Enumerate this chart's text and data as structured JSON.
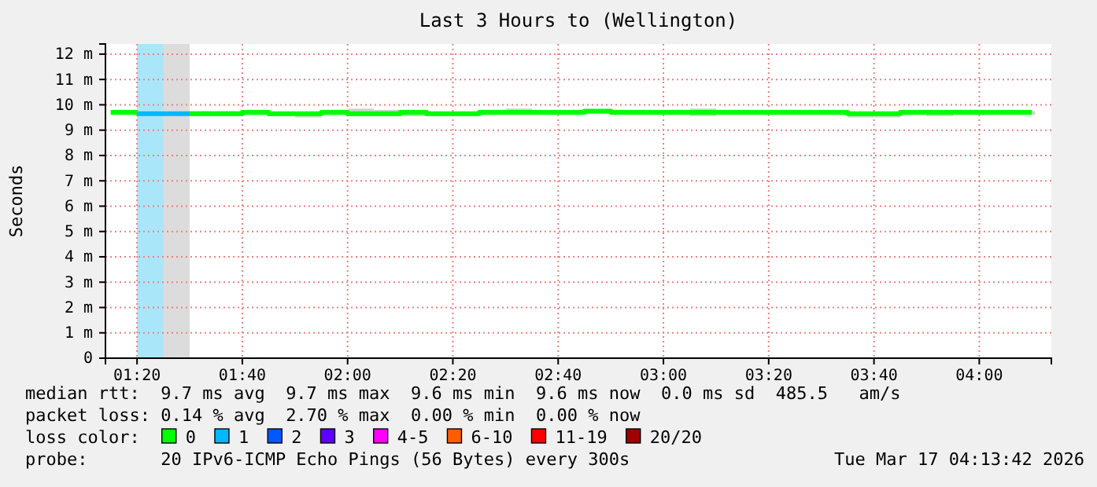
{
  "chart_data": {
    "type": "step",
    "title": "Last 3 Hours to (Wellington)",
    "ylabel": "Seconds",
    "xlim": [
      1.2333,
      4.2283
    ],
    "xticks": [
      {
        "value": 1.3333,
        "label": "01:20"
      },
      {
        "value": 1.6667,
        "label": "01:40"
      },
      {
        "value": 2,
        "label": "02:00"
      },
      {
        "value": 2.3333,
        "label": "02:20"
      },
      {
        "value": 2.6667,
        "label": "02:40"
      },
      {
        "value": 3,
        "label": "03:00"
      },
      {
        "value": 3.3333,
        "label": "03:20"
      },
      {
        "value": 3.6667,
        "label": "03:40"
      },
      {
        "value": 4,
        "label": "04:00"
      }
    ],
    "ylim": [
      0,
      12.4
    ],
    "yticks": [
      {
        "value": 0,
        "label": "0"
      },
      {
        "value": 1,
        "label": "1 m"
      },
      {
        "value": 2,
        "label": "2 m"
      },
      {
        "value": 3,
        "label": "3 m"
      },
      {
        "value": 4,
        "label": "4 m"
      },
      {
        "value": 5,
        "label": "5 m"
      },
      {
        "value": 6,
        "label": "6 m"
      },
      {
        "value": 7,
        "label": "7 m"
      },
      {
        "value": 8,
        "label": "8 m"
      },
      {
        "value": 9,
        "label": "9 m"
      },
      {
        "value": 10,
        "label": "10 m"
      },
      {
        "value": 11,
        "label": "11 m"
      },
      {
        "value": 12,
        "label": "12 m"
      }
    ],
    "x": [
      1.25,
      1.3333,
      1.4167,
      1.5,
      1.5833,
      1.6667,
      1.75,
      1.8333,
      1.9167,
      2,
      2.0833,
      2.1667,
      2.25,
      2.3333,
      2.4167,
      2.5,
      2.5833,
      2.6667,
      2.75,
      2.8333,
      2.9167,
      3,
      3.0833,
      3.1667,
      3.25,
      3.3333,
      3.4167,
      3.5,
      3.5833,
      3.6667,
      3.75,
      3.8333,
      3.9167,
      4,
      4.0833,
      4.1667
    ],
    "series": [
      {
        "name": "0",
        "color": "#00ff00",
        "values": [
          9.7,
          9.7,
          null,
          9.65,
          9.65,
          9.7,
          9.65,
          9.65,
          9.7,
          9.65,
          9.65,
          9.7,
          9.65,
          9.65,
          9.7,
          9.7,
          9.7,
          9.7,
          9.75,
          9.7,
          9.7,
          9.7,
          9.7,
          9.7,
          9.7,
          9.7,
          9.7,
          9.7,
          9.65,
          9.65,
          9.7,
          9.7,
          9.7,
          9.7,
          9.7,
          9.7
        ],
        "lower": [
          9.6,
          null,
          null,
          9.55,
          9.55,
          9.6,
          9.55,
          9.5,
          9.6,
          9.55,
          9.55,
          9.55,
          9.55,
          9.55,
          9.6,
          9.6,
          9.6,
          9.6,
          9.65,
          9.6,
          9.6,
          9.6,
          9.55,
          9.6,
          9.6,
          9.6,
          9.6,
          9.6,
          9.5,
          9.5,
          9.6,
          9.55,
          9.6,
          9.6,
          9.6,
          9.6
        ],
        "upper": [
          9.8,
          null,
          null,
          9.75,
          9.75,
          9.75,
          9.7,
          9.7,
          9.8,
          9.85,
          9.8,
          9.75,
          9.7,
          9.7,
          9.8,
          9.85,
          9.75,
          9.75,
          9.8,
          9.75,
          9.75,
          9.8,
          9.85,
          9.75,
          9.75,
          9.8,
          9.75,
          9.75,
          9.7,
          9.7,
          9.75,
          9.75,
          9.8,
          9.75,
          9.75,
          9.75
        ]
      },
      {
        "name": "1",
        "color": "#00b8ff",
        "values": [
          null,
          9.65,
          9.65,
          9.65,
          null,
          null,
          null,
          null,
          null,
          null,
          null,
          null,
          null,
          null,
          null,
          null,
          null,
          null,
          null,
          null,
          null,
          null,
          null,
          null,
          null,
          null,
          null,
          null,
          null,
          null,
          null,
          null,
          null,
          null,
          null,
          null
        ]
      },
      {
        "name": "2",
        "color": "#0059ff",
        "values": [
          null,
          null,
          null,
          null,
          null,
          null,
          null,
          null,
          null,
          null,
          null,
          null,
          null,
          null,
          null,
          null,
          null,
          null,
          null,
          null,
          null,
          null,
          null,
          null,
          null,
          null,
          null,
          null,
          null,
          null,
          null,
          null,
          null,
          null,
          null,
          null
        ]
      },
      {
        "name": "3",
        "color": "#5e00ff",
        "values": [
          null,
          null,
          null,
          null,
          null,
          null,
          null,
          null,
          null,
          null,
          null,
          null,
          null,
          null,
          null,
          null,
          null,
          null,
          null,
          null,
          null,
          null,
          null,
          null,
          null,
          null,
          null,
          null,
          null,
          null,
          null,
          null,
          null,
          null,
          null,
          null
        ]
      },
      {
        "name": "4-5",
        "color": "#ff00ff",
        "values": [
          null,
          null,
          null,
          null,
          null,
          null,
          null,
          null,
          null,
          null,
          null,
          null,
          null,
          null,
          null,
          null,
          null,
          null,
          null,
          null,
          null,
          null,
          null,
          null,
          null,
          null,
          null,
          null,
          null,
          null,
          null,
          null,
          null,
          null,
          null,
          null
        ]
      },
      {
        "name": "6-10",
        "color": "#ff5e00",
        "values": [
          null,
          null,
          null,
          null,
          null,
          null,
          null,
          null,
          null,
          null,
          null,
          null,
          null,
          null,
          null,
          null,
          null,
          null,
          null,
          null,
          null,
          null,
          null,
          null,
          null,
          null,
          null,
          null,
          null,
          null,
          null,
          null,
          null,
          null,
          null,
          null
        ]
      },
      {
        "name": "11-19",
        "color": "#ff0000",
        "values": [
          null,
          null,
          null,
          null,
          null,
          null,
          null,
          null,
          null,
          null,
          null,
          null,
          null,
          null,
          null,
          null,
          null,
          null,
          null,
          null,
          null,
          null,
          null,
          null,
          null,
          null,
          null,
          null,
          null,
          null,
          null,
          null,
          null,
          null,
          null,
          null
        ]
      },
      {
        "name": "20/20",
        "color": "#a10000",
        "values": [
          null,
          null,
          null,
          null,
          null,
          null,
          null,
          null,
          null,
          null,
          null,
          null,
          null,
          null,
          null,
          null,
          null,
          null,
          null,
          null,
          null,
          null,
          null,
          null,
          null,
          null,
          null,
          null,
          null,
          null,
          null,
          null,
          null,
          null,
          null,
          null
        ]
      }
    ],
    "bands": [
      {
        "axis": "x",
        "from": 1.3333,
        "to": 1.5,
        "color": "#aae6fa"
      },
      {
        "axis": "x",
        "from": 1.4167,
        "to": 1.5,
        "color": "#dcdcdc"
      }
    ],
    "legend_title": "loss color:",
    "legend": "bottom",
    "grid": true,
    "annotations": [
      "median rtt:  9.7 ms avg  9.7 ms max  9.6 ms min  9.6 ms now  0.0 ms sd  485.5   am/s",
      "packet loss: 0.14 % avg  2.70 % max  0.00 % min  0.00 % now",
      "probe:       20 IPv6-ICMP Echo Pings (56 Bytes) every 300s",
      "Tue Mar 17 04:13:42 2026"
    ]
  }
}
